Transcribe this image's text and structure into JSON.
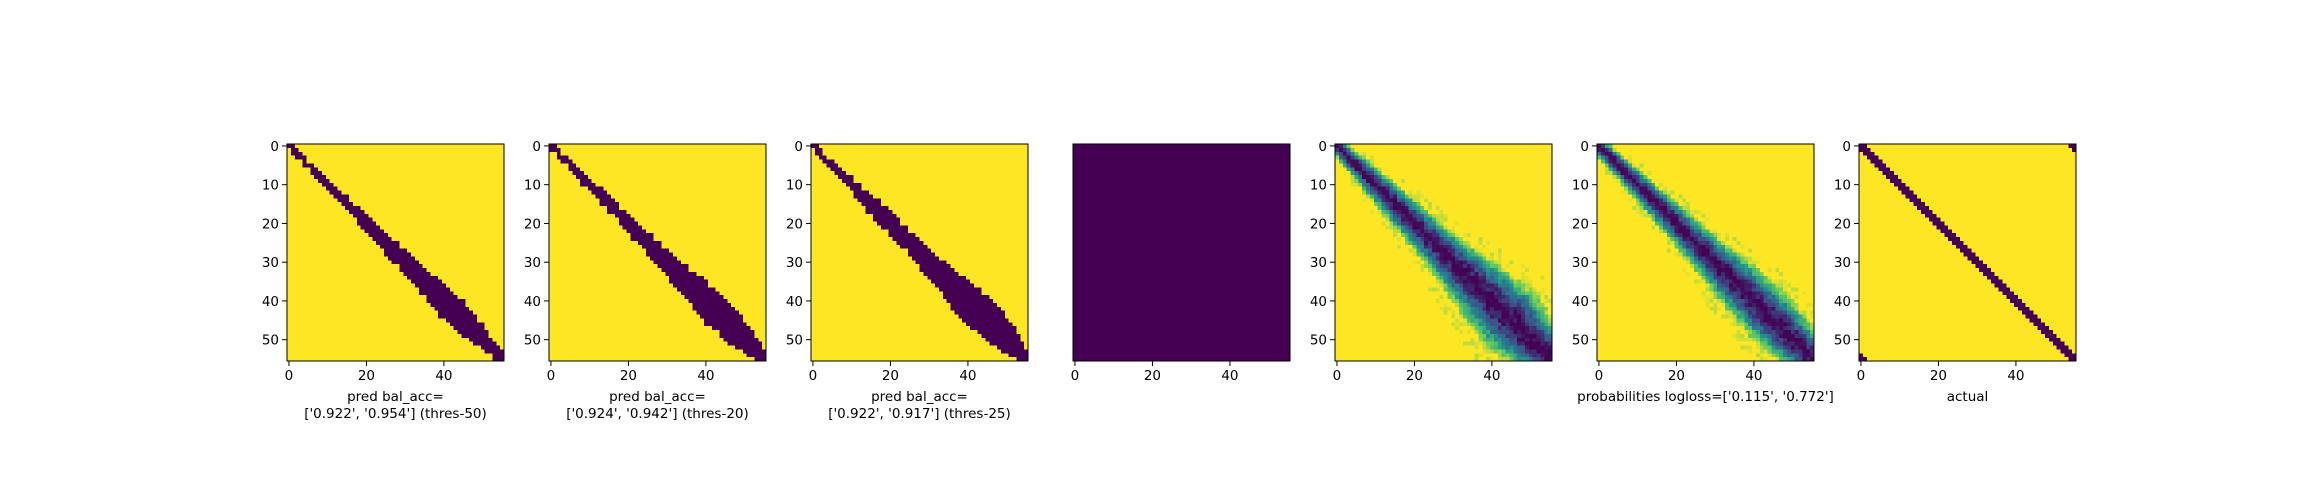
{
  "chart_data": [
    {
      "type": "heatmap",
      "variant": "binary-prediction",
      "xlabel_lines": [
        "pred bal_acc=",
        "['0.922', '0.954'] (thres-50)"
      ],
      "matrix_size": 56,
      "xticks": [
        0,
        20,
        40
      ],
      "yticks": [
        0,
        10,
        20,
        30,
        40,
        50
      ],
      "colors": {
        "low": "#440154",
        "high": "#fde725"
      },
      "band_halfwidth_profile": [
        [
          0,
          1
        ],
        [
          10,
          1.5
        ],
        [
          20,
          2.2
        ],
        [
          30,
          3.2
        ],
        [
          42,
          5
        ],
        [
          48,
          4
        ],
        [
          55,
          1.5
        ]
      ]
    },
    {
      "type": "heatmap",
      "variant": "binary-prediction",
      "xlabel_lines": [
        "pred bal_acc=",
        "['0.924', '0.942'] (thres-20)"
      ],
      "matrix_size": 56,
      "xticks": [
        0,
        20,
        40
      ],
      "yticks": [
        0,
        10,
        20,
        30,
        40,
        50
      ],
      "colors": {
        "low": "#440154",
        "high": "#fde725"
      },
      "band_halfwidth_profile": [
        [
          0,
          1.2
        ],
        [
          10,
          1.7
        ],
        [
          20,
          2.4
        ],
        [
          30,
          3.5
        ],
        [
          42,
          6
        ],
        [
          48,
          5
        ],
        [
          55,
          2
        ]
      ]
    },
    {
      "type": "heatmap",
      "variant": "binary-prediction",
      "xlabel_lines": [
        "pred bal_acc=",
        "['0.922', '0.917'] (thres-25)"
      ],
      "matrix_size": 56,
      "xticks": [
        0,
        20,
        40
      ],
      "yticks": [
        0,
        10,
        20,
        30,
        40,
        50
      ],
      "colors": {
        "low": "#440154",
        "high": "#fde725"
      },
      "band_halfwidth_profile": [
        [
          0,
          1.2
        ],
        [
          10,
          1.8
        ],
        [
          18,
          3.5
        ],
        [
          26,
          3
        ],
        [
          33,
          4.5
        ],
        [
          42,
          6.5
        ],
        [
          50,
          5
        ],
        [
          55,
          2
        ]
      ]
    },
    {
      "type": "heatmap",
      "variant": "uniform",
      "xlabel_lines": [],
      "matrix_size": 56,
      "xticks": [
        0,
        20,
        40
      ],
      "yticks": [],
      "colors": {
        "low": "#440154",
        "high": "#fde725"
      },
      "uniform_value": 0
    },
    {
      "type": "heatmap",
      "variant": "probability",
      "xlabel_lines": [],
      "matrix_size": 56,
      "xticks": [
        0,
        20,
        40
      ],
      "yticks": [
        0,
        10,
        20,
        30,
        40,
        50
      ],
      "colormap": [
        "#440154",
        "#3b528b",
        "#21918c",
        "#5ec962",
        "#fde725"
      ],
      "band_halfwidth_profile": [
        [
          0,
          2
        ],
        [
          15,
          4
        ],
        [
          25,
          5
        ],
        [
          35,
          7
        ],
        [
          45,
          9
        ],
        [
          55,
          6
        ]
      ]
    },
    {
      "type": "heatmap",
      "variant": "probability",
      "xlabel_lines": [
        "probabilities logloss=['0.115', '0.772']"
      ],
      "matrix_size": 56,
      "xticks": [
        0,
        20,
        40
      ],
      "yticks": [
        0,
        10,
        20,
        30,
        40,
        50
      ],
      "colormap": [
        "#440154",
        "#3b528b",
        "#21918c",
        "#5ec962",
        "#fde725"
      ],
      "band_halfwidth_profile": [
        [
          0,
          2
        ],
        [
          15,
          3.5
        ],
        [
          25,
          4.5
        ],
        [
          35,
          6
        ],
        [
          45,
          7
        ],
        [
          55,
          5
        ]
      ]
    },
    {
      "type": "heatmap",
      "variant": "binary-actual",
      "xlabel_lines": [
        "actual"
      ],
      "matrix_size": 56,
      "xticks": [
        0,
        20,
        40
      ],
      "yticks": [
        0,
        10,
        20,
        30,
        40,
        50
      ],
      "colors": {
        "low": "#440154",
        "high": "#fde725"
      },
      "band_halfwidth": 1.5,
      "corner_cells": [
        [
          0,
          54
        ],
        [
          0,
          55
        ],
        [
          1,
          55
        ],
        [
          54,
          0
        ],
        [
          55,
          0
        ],
        [
          55,
          1
        ]
      ]
    }
  ]
}
